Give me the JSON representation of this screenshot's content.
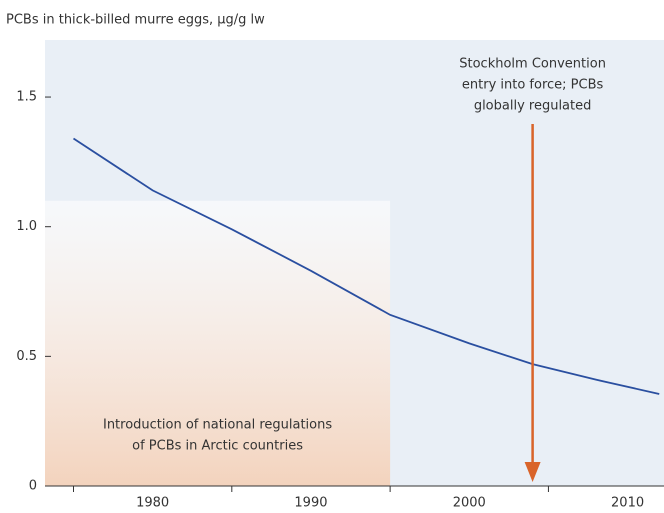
{
  "chart_data": {
    "type": "line",
    "title": "PCBs in thick-billed murre eggs, µg/g lw",
    "x": [
      1975,
      1980,
      1985,
      1990,
      1995,
      2000,
      2004,
      2008,
      2012
    ],
    "series": [
      {
        "color": "#2a4fa0",
        "values": [
          1.34,
          1.14,
          0.99,
          0.83,
          0.66,
          0.55,
          0.47,
          0.41,
          0.355
        ]
      }
    ],
    "xlim": [
      1973.2,
      2012.3
    ],
    "xticks": [
      1980,
      1990,
      2000,
      2010
    ],
    "xminor_ticks": [
      1975,
      1985,
      1995,
      2005
    ],
    "ylim": [
      0,
      1.72
    ],
    "yticks": [
      0,
      0.5,
      {
        "value": 1,
        "label": "1.0"
      },
      1.5
    ],
    "shaded_region": {
      "x": [
        1973.2,
        1995
      ],
      "ytop": 1.1,
      "color": "#f3d3bd",
      "label": [
        "Introduction of national regulations",
        "of PCBs in Arctic countries"
      ]
    },
    "arrow": {
      "x": 2004,
      "color": "#d9642a",
      "label": [
        "Stockholm Convention",
        "entry into force; PCBs",
        "globally regulated"
      ]
    }
  }
}
